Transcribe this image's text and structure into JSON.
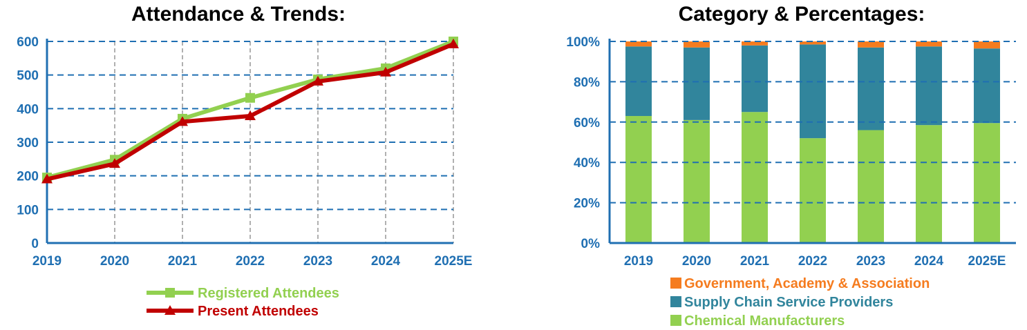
{
  "chart_data": [
    {
      "type": "line",
      "title": "Attendance & Trends:",
      "categories": [
        "2019",
        "2020",
        "2021",
        "2022",
        "2023",
        "2024",
        "2025E"
      ],
      "ylim": [
        0,
        600
      ],
      "yticks": [
        "0",
        "100",
        "200",
        "300",
        "400",
        "500",
        "600"
      ],
      "grid": true,
      "legend_position": "bottom",
      "series": [
        {
          "name": "Registered Attendees",
          "values": [
            195,
            248,
            370,
            432,
            487,
            520,
            600
          ],
          "color": "#92d050",
          "marker": "square"
        },
        {
          "name": "Present Attendees",
          "values": [
            190,
            236,
            361,
            378,
            481,
            508,
            592
          ],
          "color": "#c00000",
          "marker": "triangle"
        }
      ]
    },
    {
      "type": "bar",
      "stacked": true,
      "title": "Category & Percentages:",
      "categories": [
        "2019",
        "2020",
        "2021",
        "2022",
        "2023",
        "2024",
        "2025E"
      ],
      "ylim": [
        0,
        100
      ],
      "yticks": [
        "0%",
        "20%",
        "40%",
        "60%",
        "80%",
        "100%"
      ],
      "grid": true,
      "legend_position": "bottom",
      "series": [
        {
          "name": "Chemical Manufacturers",
          "values": [
            63,
            61,
            65,
            52,
            56,
            58.5,
            59.5
          ],
          "color": "#92d050"
        },
        {
          "name": "Supply Chain Service Providers",
          "values": [
            34.5,
            36,
            33,
            46.5,
            41,
            39,
            37
          ],
          "color": "#31859c"
        },
        {
          "name": "Government, Academy & Association",
          "values": [
            2.5,
            3,
            2,
            1.5,
            3,
            2.5,
            3.5
          ],
          "color": "#f57c1f"
        }
      ]
    }
  ]
}
